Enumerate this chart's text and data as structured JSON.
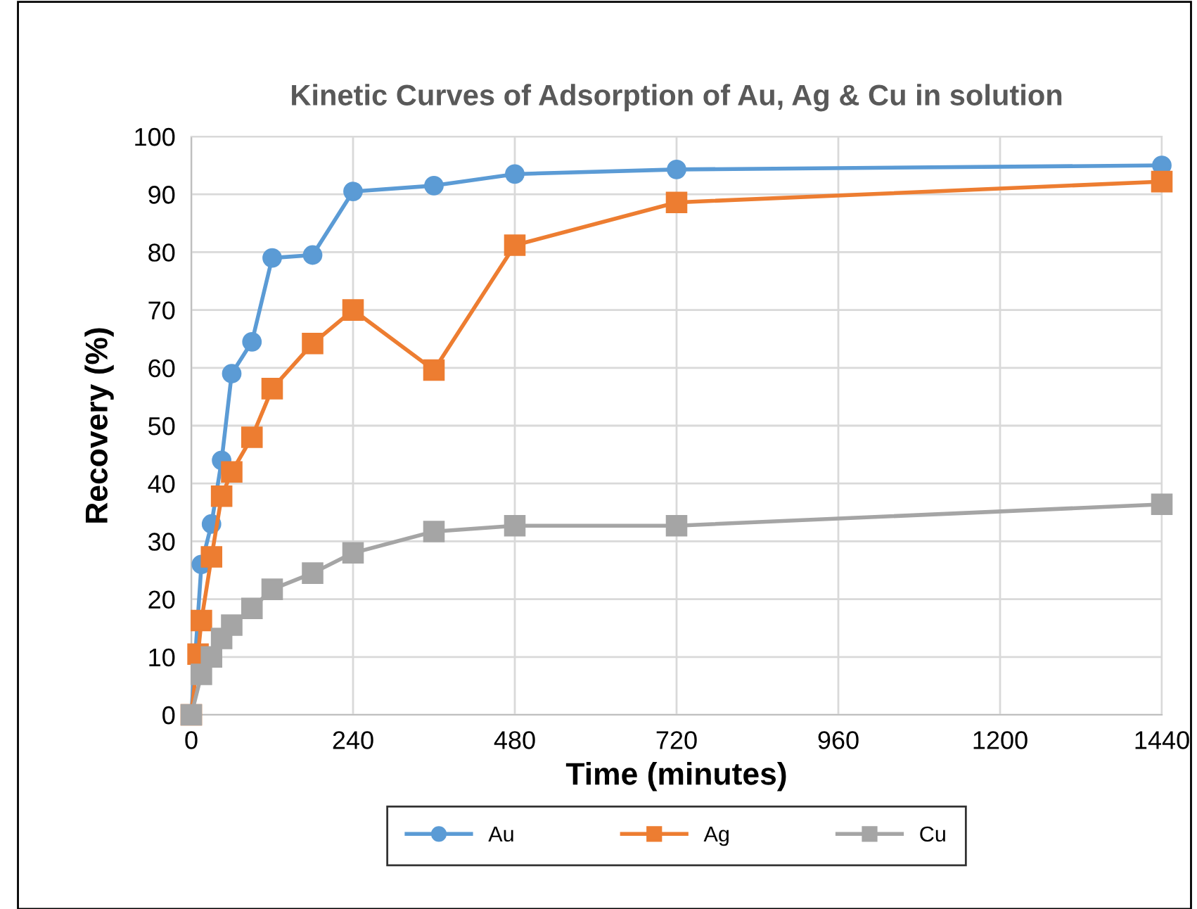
{
  "chart_data": {
    "type": "line",
    "title": "Kinetic Curves of Adsorption of Au, Ag & Cu in solution",
    "xlabel": "Time (minutes)",
    "ylabel": "Recovery (%)",
    "x": [
      0,
      5,
      10,
      15,
      30,
      45,
      60,
      90,
      120,
      180,
      240,
      360,
      480,
      720,
      1440
    ],
    "series": [
      {
        "name": "Au",
        "color": "#5b9bd5",
        "marker": "circle",
        "values": [
          0,
          null,
          null,
          26,
          33,
          44,
          59,
          64.5,
          79,
          79.5,
          90.5,
          91.5,
          93.5,
          94.3,
          95
        ]
      },
      {
        "name": "Ag",
        "color": "#ed7d31",
        "marker": "square",
        "values": [
          0,
          null,
          10.5,
          16.3,
          27.3,
          37.8,
          42,
          48,
          56.4,
          64.2,
          70,
          59.6,
          81.2,
          88.6,
          92.2
        ]
      },
      {
        "name": "Cu",
        "color": "#a5a5a5",
        "marker": "square",
        "values": [
          0,
          null,
          null,
          7,
          10,
          13.2,
          15.5,
          18.4,
          21.7,
          24.5,
          28,
          31.7,
          32.7,
          32.7,
          36.4
        ]
      }
    ],
    "xlim": [
      0,
      1440
    ],
    "xticks": [
      0,
      240,
      480,
      720,
      960,
      1200,
      1440
    ],
    "ylim": [
      0,
      100
    ],
    "yticks": [
      0,
      10,
      20,
      30,
      40,
      50,
      60,
      70,
      80,
      90,
      100
    ],
    "grid": true,
    "legend": "bottom",
    "line_style": "solid"
  }
}
